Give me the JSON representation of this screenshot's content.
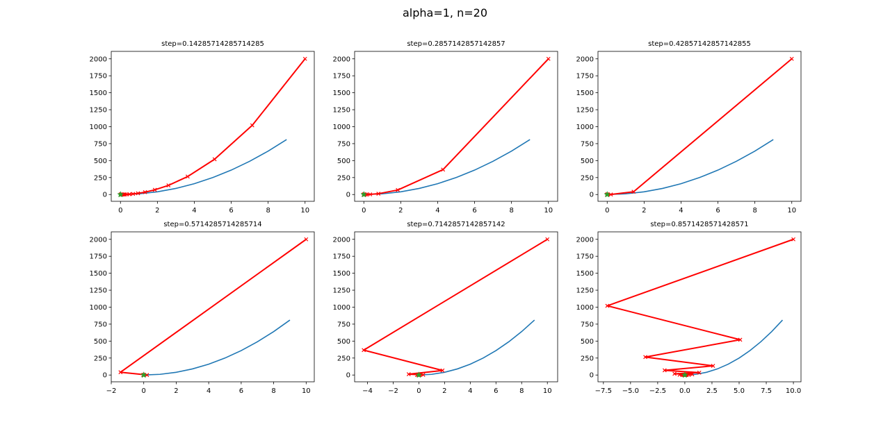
{
  "figure": {
    "title": "alpha=1, n=20"
  },
  "colors": {
    "curve": "#1f77b4",
    "descent": "#ff0000",
    "start": "#2ca02c"
  },
  "chart_data": [
    {
      "type": "line",
      "title": "step=0.14285714285714285",
      "xlim": [
        -0.5,
        10.5
      ],
      "ylim": [
        -100,
        2110
      ],
      "xticks": [
        0,
        2,
        4,
        6,
        8,
        10
      ],
      "xtick_labels": [
        "0",
        "2",
        "4",
        "6",
        "8",
        "10"
      ],
      "yticks": [
        0,
        250,
        500,
        750,
        1000,
        1250,
        1500,
        1750,
        2000
      ],
      "ytick_labels": [
        "0",
        "250",
        "500",
        "750",
        "1000",
        "1250",
        "1500",
        "1750",
        "2000"
      ],
      "series": [
        {
          "x": [
            0,
            1,
            2,
            3,
            4,
            5,
            6,
            7,
            8,
            9
          ],
          "y": [
            0,
            10,
            40,
            90,
            160,
            250,
            360,
            490,
            640,
            810
          ]
        },
        {
          "x": [
            10,
            7.14,
            5.1,
            3.64,
            2.6,
            1.86,
            1.33,
            0.95,
            0.68,
            0.48,
            0.35,
            0.25,
            0.18,
            0.13,
            0.09,
            0.06,
            0.05,
            0.03,
            0.02,
            0.02,
            0.01
          ],
          "y": [
            2000,
            1020,
            520,
            265,
            135,
            69,
            35,
            18,
            9.2,
            4.7,
            2.4,
            1.2,
            0.6,
            0.3,
            0.16,
            0.08,
            0.04,
            0.02,
            0.01,
            0.01,
            0
          ]
        }
      ]
    },
    {
      "type": "line",
      "title": "step=0.2857142857142857",
      "xlim": [
        -0.5,
        10.5
      ],
      "ylim": [
        -100,
        2110
      ],
      "xticks": [
        0,
        2,
        4,
        6,
        8,
        10
      ],
      "xtick_labels": [
        "0",
        "2",
        "4",
        "6",
        "8",
        "10"
      ],
      "yticks": [
        0,
        250,
        500,
        750,
        1000,
        1250,
        1500,
        1750,
        2000
      ],
      "ytick_labels": [
        "0",
        "250",
        "500",
        "750",
        "1000",
        "1250",
        "1500",
        "1750",
        "2000"
      ],
      "series": [
        {
          "x": [
            0,
            1,
            2,
            3,
            4,
            5,
            6,
            7,
            8,
            9
          ],
          "y": [
            0,
            10,
            40,
            90,
            160,
            250,
            360,
            490,
            640,
            810
          ]
        },
        {
          "x": [
            10,
            4.29,
            1.84,
            0.79,
            0.34,
            0.14,
            0.06,
            0.03,
            0.01,
            0.005,
            0.002,
            0.001,
            0,
            0,
            0,
            0,
            0,
            0,
            0,
            0,
            0
          ],
          "y": [
            2000,
            367,
            67,
            12,
            2.3,
            0.4,
            0.08,
            0.01,
            0,
            0,
            0,
            0,
            0,
            0,
            0,
            0,
            0,
            0,
            0,
            0,
            0
          ]
        }
      ]
    },
    {
      "type": "line",
      "title": "step=0.42857142857142855",
      "xlim": [
        -0.5,
        10.5
      ],
      "ylim": [
        -100,
        2110
      ],
      "xticks": [
        0,
        2,
        4,
        6,
        8,
        10
      ],
      "xtick_labels": [
        "0",
        "2",
        "4",
        "6",
        "8",
        "10"
      ],
      "yticks": [
        0,
        250,
        500,
        750,
        1000,
        1250,
        1500,
        1750,
        2000
      ],
      "ytick_labels": [
        "0",
        "250",
        "500",
        "750",
        "1000",
        "1250",
        "1500",
        "1750",
        "2000"
      ],
      "series": [
        {
          "x": [
            0,
            1,
            2,
            3,
            4,
            5,
            6,
            7,
            8,
            9
          ],
          "y": [
            0,
            10,
            40,
            90,
            160,
            250,
            360,
            490,
            640,
            810
          ]
        },
        {
          "x": [
            10,
            1.43,
            0.2,
            0.03,
            0,
            0,
            0,
            0,
            0,
            0,
            0,
            0,
            0,
            0,
            0,
            0,
            0,
            0,
            0,
            0,
            0
          ],
          "y": [
            2000,
            41,
            0.8,
            0.02,
            0,
            0,
            0,
            0,
            0,
            0,
            0,
            0,
            0,
            0,
            0,
            0,
            0,
            0,
            0,
            0,
            0
          ]
        }
      ]
    },
    {
      "type": "line",
      "title": "step=0.5714285714285714",
      "xlim": [
        -2,
        10.5
      ],
      "ylim": [
        -100,
        2110
      ],
      "xticks": [
        -2,
        0,
        2,
        4,
        6,
        8,
        10
      ],
      "xtick_labels": [
        "−2",
        "0",
        "2",
        "4",
        "6",
        "8",
        "10"
      ],
      "yticks": [
        0,
        250,
        500,
        750,
        1000,
        1250,
        1500,
        1750,
        2000
      ],
      "ytick_labels": [
        "0",
        "250",
        "500",
        "750",
        "1000",
        "1250",
        "1500",
        "1750",
        "2000"
      ],
      "series": [
        {
          "x": [
            0,
            1,
            2,
            3,
            4,
            5,
            6,
            7,
            8,
            9
          ],
          "y": [
            0,
            10,
            40,
            90,
            160,
            250,
            360,
            490,
            640,
            810
          ]
        },
        {
          "x": [
            10,
            -1.43,
            0.2,
            -0.03,
            0,
            0,
            0,
            0,
            0,
            0,
            0,
            0,
            0,
            0,
            0,
            0,
            0,
            0,
            0,
            0,
            0
          ],
          "y": [
            2000,
            41,
            0.8,
            0.02,
            0,
            0,
            0,
            0,
            0,
            0,
            0,
            0,
            0,
            0,
            0,
            0,
            0,
            0,
            0,
            0,
            0
          ]
        }
      ]
    },
    {
      "type": "line",
      "title": "step=0.7142857142857142",
      "xlim": [
        -5,
        10.8
      ],
      "ylim": [
        -100,
        2110
      ],
      "xticks": [
        -4,
        -2,
        0,
        2,
        4,
        6,
        8,
        10
      ],
      "xtick_labels": [
        "−4",
        "−2",
        "0",
        "2",
        "4",
        "6",
        "8",
        "10"
      ],
      "yticks": [
        0,
        250,
        500,
        750,
        1000,
        1250,
        1500,
        1750,
        2000
      ],
      "ytick_labels": [
        "0",
        "250",
        "500",
        "750",
        "1000",
        "1250",
        "1500",
        "1750",
        "2000"
      ],
      "series": [
        {
          "x": [
            0,
            1,
            2,
            3,
            4,
            5,
            6,
            7,
            8,
            9
          ],
          "y": [
            0,
            10,
            40,
            90,
            160,
            250,
            360,
            490,
            640,
            810
          ]
        },
        {
          "x": [
            10,
            -4.29,
            1.84,
            -0.79,
            0.34,
            -0.14,
            0.06,
            -0.03,
            0.01,
            0,
            0,
            0,
            0,
            0,
            0,
            0,
            0,
            0,
            0,
            0,
            0
          ],
          "y": [
            2000,
            367,
            67,
            12,
            2.3,
            0.4,
            0.08,
            0.01,
            0,
            0,
            0,
            0,
            0,
            0,
            0,
            0,
            0,
            0,
            0,
            0,
            0
          ]
        }
      ]
    },
    {
      "type": "line",
      "title": "step=0.8571428571428571",
      "xlim": [
        -8,
        10.7
      ],
      "ylim": [
        -100,
        2110
      ],
      "xticks": [
        -7.5,
        -5,
        -2.5,
        0,
        2.5,
        5,
        7.5,
        10
      ],
      "xtick_labels": [
        "−7.5",
        "−5.0",
        "−2.5",
        "0.0",
        "2.5",
        "5.0",
        "7.5",
        "10.0"
      ],
      "yticks": [
        0,
        250,
        500,
        750,
        1000,
        1250,
        1500,
        1750,
        2000
      ],
      "ytick_labels": [
        "0",
        "250",
        "500",
        "750",
        "1000",
        "1250",
        "1500",
        "1750",
        "2000"
      ],
      "series": [
        {
          "x": [
            0,
            1,
            2,
            3,
            4,
            5,
            6,
            7,
            8,
            9
          ],
          "y": [
            0,
            10,
            40,
            90,
            160,
            250,
            360,
            490,
            640,
            810
          ]
        },
        {
          "x": [
            10,
            -7.14,
            5.1,
            -3.64,
            2.6,
            -1.86,
            1.33,
            -0.95,
            0.68,
            -0.48,
            0.35,
            -0.25,
            0.18,
            -0.13,
            0.09,
            -0.06,
            0.05,
            -0.03,
            0.02,
            -0.02,
            0.01
          ],
          "y": [
            2000,
            1020,
            520,
            265,
            135,
            69,
            35,
            18,
            9.2,
            4.7,
            2.4,
            1.2,
            0.6,
            0.3,
            0.16,
            0.08,
            0.04,
            0.02,
            0.01,
            0.01,
            0
          ]
        }
      ]
    }
  ]
}
